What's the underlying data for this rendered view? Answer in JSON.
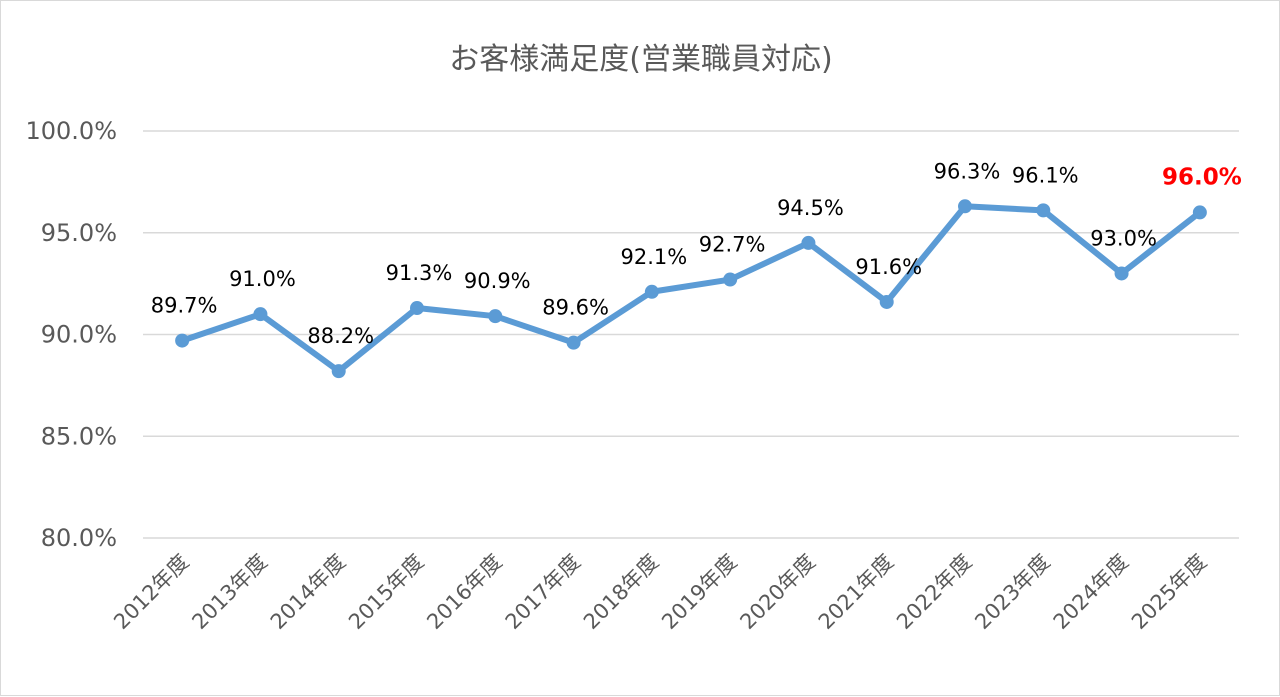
{
  "chart_data": {
    "type": "line",
    "title": "お客様満足度(営業職員対応)",
    "categories": [
      "2012年度",
      "2013年度",
      "2014年度",
      "2015年度",
      "2016年度",
      "2017年度",
      "2018年度",
      "2019年度",
      "2020年度",
      "2021年度",
      "2022年度",
      "2023年度",
      "2024年度",
      "2025年度"
    ],
    "series": [
      {
        "values": [
          89.7,
          91.0,
          88.2,
          91.3,
          90.9,
          89.6,
          92.1,
          92.7,
          94.5,
          91.6,
          96.3,
          96.1,
          93.0,
          96.0
        ],
        "labels": [
          "89.7%",
          "91.0%",
          "88.2%",
          "91.3%",
          "90.9%",
          "89.6%",
          "92.1%",
          "92.7%",
          "94.5%",
          "91.6%",
          "96.3%",
          "96.1%",
          "93.0%",
          "96.0%"
        ],
        "color": "#5b9bd5"
      }
    ],
    "highlight": {
      "index": 13,
      "color": "#ff0000"
    },
    "ylim": [
      80,
      100
    ],
    "yticks": [
      80,
      85,
      90,
      95,
      100
    ],
    "ytick_labels": [
      "80.0%",
      "85.0%",
      "90.0%",
      "95.0%",
      "100.0%"
    ],
    "grid": true,
    "legend": "none",
    "xlabel": "",
    "ylabel": ""
  }
}
